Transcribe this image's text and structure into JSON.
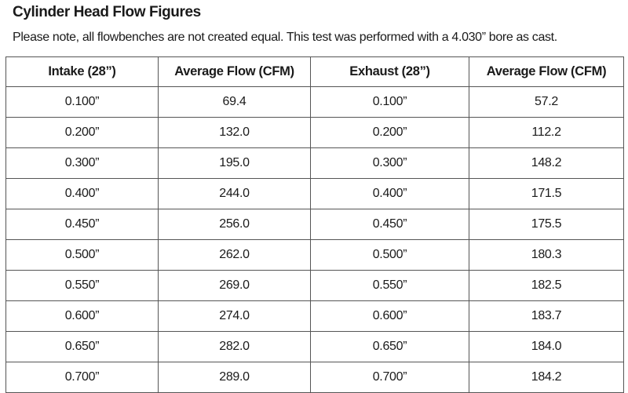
{
  "title": "Cylinder Head Flow Figures",
  "note": "Please note, all flowbenches are not created equal. This test was performed with a 4.030” bore as cast.",
  "table": {
    "headers": [
      "Intake (28”)",
      "Average Flow (CFM)",
      "Exhaust (28”)",
      "Average Flow (CFM)"
    ],
    "rows": [
      [
        "0.100”",
        "69.4",
        "0.100”",
        "57.2"
      ],
      [
        "0.200”",
        "132.0",
        "0.200”",
        "112.2"
      ],
      [
        "0.300”",
        "195.0",
        "0.300”",
        "148.2"
      ],
      [
        "0.400”",
        "244.0",
        "0.400”",
        "171.5"
      ],
      [
        "0.450”",
        "256.0",
        "0.450”",
        "175.5"
      ],
      [
        "0.500”",
        "262.0",
        "0.500”",
        "180.3"
      ],
      [
        "0.550”",
        "269.0",
        "0.550”",
        "182.5"
      ],
      [
        "0.600”",
        "274.0",
        "0.600”",
        "183.7"
      ],
      [
        "0.650”",
        "282.0",
        "0.650”",
        "184.0"
      ],
      [
        "0.700”",
        "289.0",
        "0.700”",
        "184.2"
      ]
    ]
  }
}
